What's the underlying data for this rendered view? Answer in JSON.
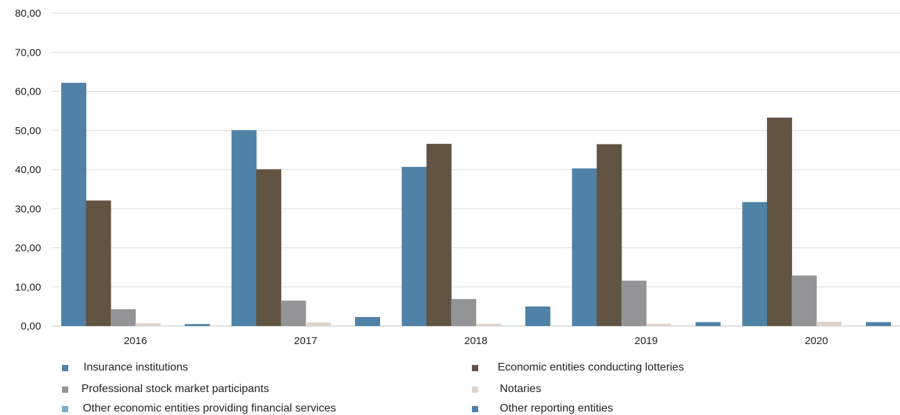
{
  "chart_data": {
    "type": "bar",
    "categories": [
      "2016",
      "2017",
      "2018",
      "2019",
      "2020"
    ],
    "ylim": [
      0,
      80
    ],
    "yticks": [
      "0,00",
      "10,00",
      "20,00",
      "30,00",
      "40,00",
      "50,00",
      "60,00",
      "70,00",
      "80,00"
    ],
    "grid": true,
    "legend_position": "bottom",
    "series": [
      {
        "name": "Insurance institutions",
        "color": "#5081a6",
        "values": [
          62.2,
          50.1,
          40.7,
          40.3,
          31.7
        ]
      },
      {
        "name": "Economic entities conducting lotteries",
        "color": "#625443",
        "values": [
          32.1,
          40.1,
          46.6,
          46.5,
          53.3
        ]
      },
      {
        "name": "Professional stock market participants",
        "color": "#949497",
        "values": [
          4.3,
          6.5,
          6.9,
          11.6,
          12.9
        ]
      },
      {
        "name": "Notaries",
        "color": "#dfd3ca",
        "values": [
          0.7,
          0.9,
          0.6,
          0.6,
          1.1
        ]
      },
      {
        "name": "Other economic entities providing financial services",
        "color": "#7aaed1",
        "values": [
          0,
          0,
          0,
          0,
          0
        ]
      },
      {
        "name": "Other reporting entities",
        "color": "#5081a6",
        "values": [
          0.5,
          2.3,
          5.0,
          1.0,
          1.0
        ]
      }
    ]
  }
}
